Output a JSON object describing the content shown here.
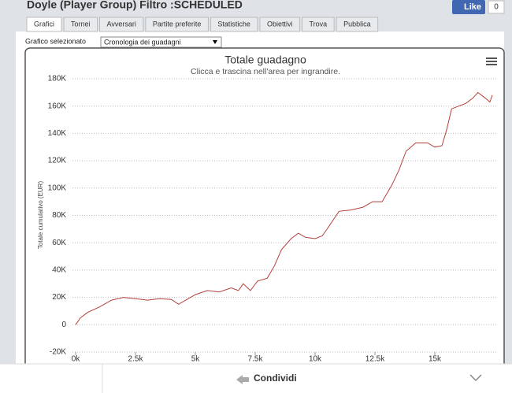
{
  "header": {
    "title": "Doyle (Player Group) Filtro :SCHEDULED",
    "like": "Like",
    "like_count": "0"
  },
  "tabs": [
    "Grafici",
    "Tornei",
    "Avversari",
    "Partite preferite",
    "Statistiche",
    "Obiettivi",
    "Trova",
    "Pubblica"
  ],
  "selector": {
    "label": "Grafico selezionato",
    "value": "Cronologia dei guadagni"
  },
  "chart_data": {
    "type": "line",
    "title": "Totale guadagno",
    "subtitle": "Clicca e trascina nell'area per ingrandire.",
    "y_label": "Totale cumulativo (EUR)",
    "x": [
      0,
      200,
      500,
      1000,
      1500,
      2000,
      2500,
      3000,
      3500,
      4000,
      4300,
      4600,
      5000,
      5500,
      6000,
      6500,
      6800,
      7000,
      7300,
      7600,
      8000,
      8300,
      8600,
      9000,
      9300,
      9600,
      10000,
      10300,
      10500,
      11000,
      11500,
      12000,
      12400,
      12800,
      13200,
      13500,
      13800,
      14200,
      14700,
      15000,
      15300,
      15500,
      15700,
      16000,
      16300,
      16600,
      16800,
      17100,
      17300,
      17400
    ],
    "series": [
      {
        "name": "Totale guadagno",
        "color": "#b5403a",
        "values": [
          0,
          5000,
          9000,
          13000,
          18000,
          20000,
          19000,
          18000,
          19000,
          18500,
          15000,
          18000,
          22000,
          25000,
          24000,
          27000,
          25000,
          30000,
          25000,
          32000,
          34000,
          43000,
          55000,
          63000,
          67000,
          64000,
          63000,
          65000,
          70000,
          83000,
          84000,
          86000,
          90000,
          90000,
          102000,
          113000,
          127000,
          133000,
          133000,
          130000,
          131000,
          143000,
          158000,
          160000,
          162000,
          166000,
          170000,
          166000,
          163000,
          168000
        ]
      }
    ],
    "xlim": [
      0,
      17500
    ],
    "xticks": [
      {
        "value": 0,
        "label": "0k"
      },
      {
        "value": 2500,
        "label": "2.5k"
      },
      {
        "value": 5000,
        "label": "5k"
      },
      {
        "value": 7500,
        "label": "7.5k"
      },
      {
        "value": 10000,
        "label": "10k"
      },
      {
        "value": 12500,
        "label": "12.5k"
      },
      {
        "value": 15000,
        "label": "15k"
      }
    ],
    "ylim": [
      -20000,
      180000
    ],
    "yticks": [
      {
        "value": -20000,
        "label": "-20K"
      },
      0,
      {
        "value": 20000,
        "label": "20K"
      },
      {
        "value": 40000,
        "label": "40K"
      },
      {
        "value": 60000,
        "label": "60K"
      },
      {
        "value": 80000,
        "label": "80K"
      },
      {
        "value": 100000,
        "label": "100K"
      },
      {
        "value": 120000,
        "label": "120K"
      },
      {
        "value": 140000,
        "label": "140K"
      },
      {
        "value": 160000,
        "label": "160K"
      },
      {
        "value": 180000,
        "label": "180K"
      }
    ],
    "grid": true
  },
  "footer": {
    "share": "Condividi"
  }
}
